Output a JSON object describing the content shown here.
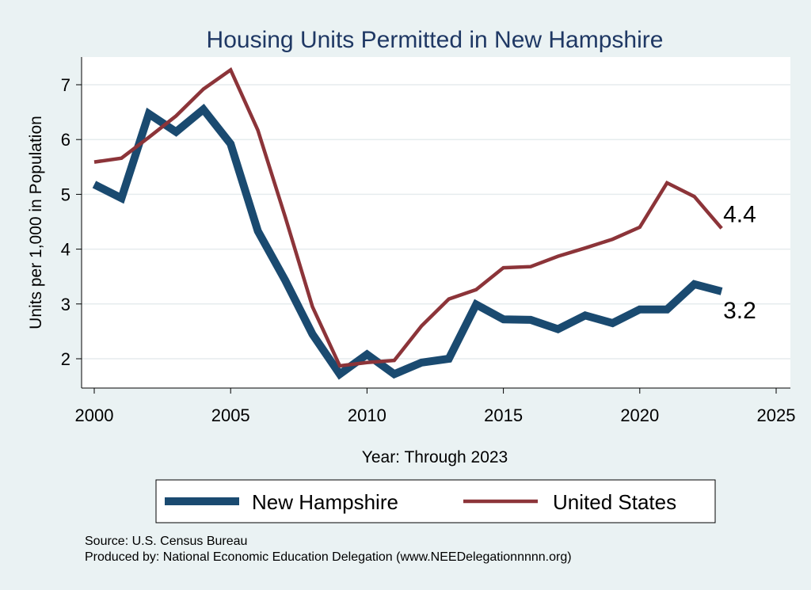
{
  "chart_data": {
    "type": "line",
    "title": "Housing Units Permitted in New Hampshire",
    "xlabel": "Year: Through 2023",
    "ylabel": "Units per 1,000 in Population",
    "xlim": [
      2000,
      2025
    ],
    "ylim": [
      1.55,
      7.5
    ],
    "xticks": [
      2000,
      2005,
      2010,
      2015,
      2020,
      2025
    ],
    "yticks": [
      2,
      3,
      4,
      5,
      6,
      7
    ],
    "grid": true,
    "legend": "bottom",
    "x": [
      2000,
      2001,
      2002,
      2003,
      2004,
      2005,
      2006,
      2007,
      2008,
      2009,
      2010,
      2011,
      2012,
      2013,
      2014,
      2015,
      2016,
      2017,
      2018,
      2019,
      2020,
      2021,
      2022,
      2023
    ],
    "series": [
      {
        "name": "New Hampshire",
        "color": "#1a4a70",
        "values": [
          5.18,
          4.93,
          6.47,
          6.14,
          6.55,
          5.92,
          4.33,
          3.43,
          2.45,
          1.72,
          2.08,
          1.72,
          1.93,
          2.0,
          2.99,
          2.72,
          2.71,
          2.54,
          2.79,
          2.65,
          2.9,
          2.9,
          3.36,
          3.23
        ]
      },
      {
        "name": "United States",
        "color": "#8c3439",
        "values": [
          5.59,
          5.66,
          6.04,
          6.43,
          6.92,
          7.27,
          6.17,
          4.59,
          2.95,
          1.87,
          1.93,
          1.97,
          2.6,
          3.09,
          3.26,
          3.66,
          3.68,
          3.87,
          4.02,
          4.18,
          4.4,
          5.21,
          4.96,
          4.38
        ]
      }
    ],
    "end_labels": [
      "4.4",
      "3.2"
    ]
  },
  "source": "Source: U.S. Census Bureau",
  "produced_by": "Produced by: National Economic Education Delegation (www.NEEDelegationnnnn.org)"
}
